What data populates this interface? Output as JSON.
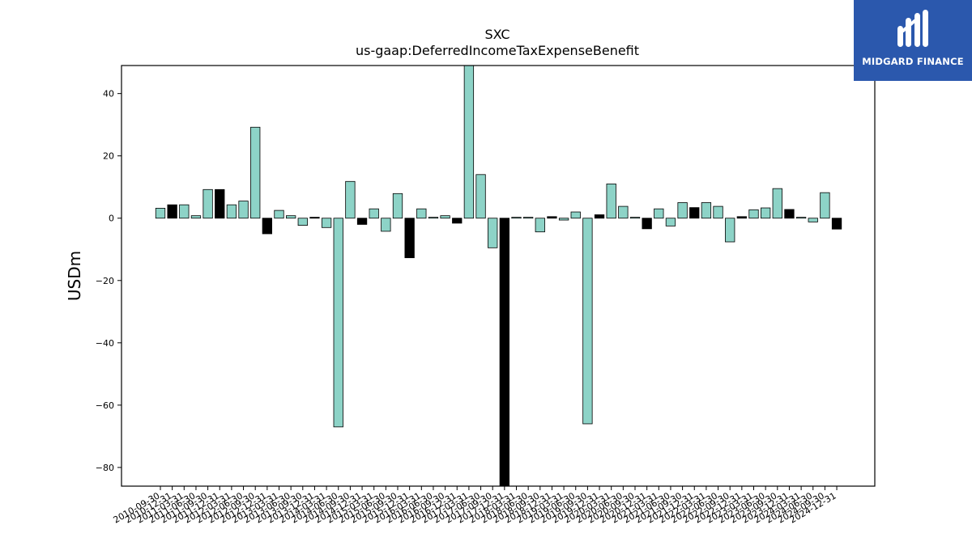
{
  "brand": {
    "name": "MIDGARD FINANCE",
    "bg_color": "#2b58ad",
    "icon": "midgard-m-logo-icon"
  },
  "chart_data": {
    "type": "bar",
    "title": "SXC",
    "subtitle": "us-gaap:DeferredIncomeTaxExpenseBenefit",
    "xlabel": "",
    "ylabel": "USDm",
    "ylim": [
      -86,
      49
    ],
    "yticks": [
      40,
      20,
      0,
      -20,
      -40,
      -60,
      -80
    ],
    "grid": false,
    "colors": {
      "quarterly": "#8dd3c7",
      "annual": "#000000"
    },
    "categories": [
      "2010-09-30",
      "2010-12-31",
      "2011-03-31",
      "2011-06-30",
      "2011-09-30",
      "2011-12-31",
      "2012-03-31",
      "2012-06-30",
      "2012-09-30",
      "2012-12-31",
      "2013-03-31",
      "2013-06-30",
      "2013-09-30",
      "2013-12-31",
      "2014-03-31",
      "2014-06-30",
      "2014-09-30",
      "2014-12-31",
      "2015-03-31",
      "2015-06-30",
      "2015-09-30",
      "2015-12-31",
      "2016-03-31",
      "2016-06-30",
      "2016-09-30",
      "2016-12-31",
      "2017-03-31",
      "2017-06-30",
      "2017-09-30",
      "2017-12-31",
      "2018-03-31",
      "2018-06-30",
      "2018-09-30",
      "2018-12-31",
      "2019-03-31",
      "2019-06-30",
      "2019-09-30",
      "2019-12-31",
      "2020-03-31",
      "2020-06-30",
      "2020-09-30",
      "2020-12-31",
      "2021-03-31",
      "2021-06-30",
      "2021-09-30",
      "2021-12-31",
      "2022-03-31",
      "2022-06-30",
      "2022-09-30",
      "2022-12-31",
      "2023-03-31",
      "2023-06-30",
      "2023-09-30",
      "2023-12-31",
      "2024-03-31",
      "2024-06-30",
      "2024-09-30",
      "2024-12-31"
    ],
    "values": [
      3.2,
      4.3,
      4.3,
      0.8,
      9.2,
      9.2,
      4.3,
      5.5,
      29.2,
      -5.0,
      2.5,
      0.8,
      -2.3,
      0.3,
      -3.0,
      -67.0,
      11.8,
      -2.0,
      3.0,
      -4.2,
      7.9,
      -12.7,
      3.0,
      0.3,
      0.8,
      -1.6,
      49.0,
      14.0,
      -9.5,
      -86.0,
      0.3,
      0.3,
      -4.4,
      0.5,
      -0.6,
      2.0,
      -66.0,
      1.1,
      11.0,
      3.8,
      0.3,
      -3.4,
      3.0,
      -2.5,
      5.0,
      3.4,
      5.0,
      3.8,
      -7.6,
      0.5,
      2.7,
      3.3,
      9.5,
      2.8,
      0.3,
      -1.2,
      8.2,
      -3.5
    ],
    "annual": [
      false,
      true,
      false,
      false,
      false,
      true,
      false,
      false,
      false,
      true,
      false,
      false,
      false,
      true,
      false,
      false,
      false,
      true,
      false,
      false,
      false,
      true,
      false,
      false,
      false,
      true,
      false,
      false,
      false,
      true,
      false,
      false,
      false,
      true,
      false,
      false,
      false,
      true,
      false,
      false,
      false,
      true,
      false,
      false,
      false,
      true,
      false,
      false,
      false,
      true,
      false,
      false,
      false,
      true,
      false,
      false,
      false,
      true
    ]
  }
}
